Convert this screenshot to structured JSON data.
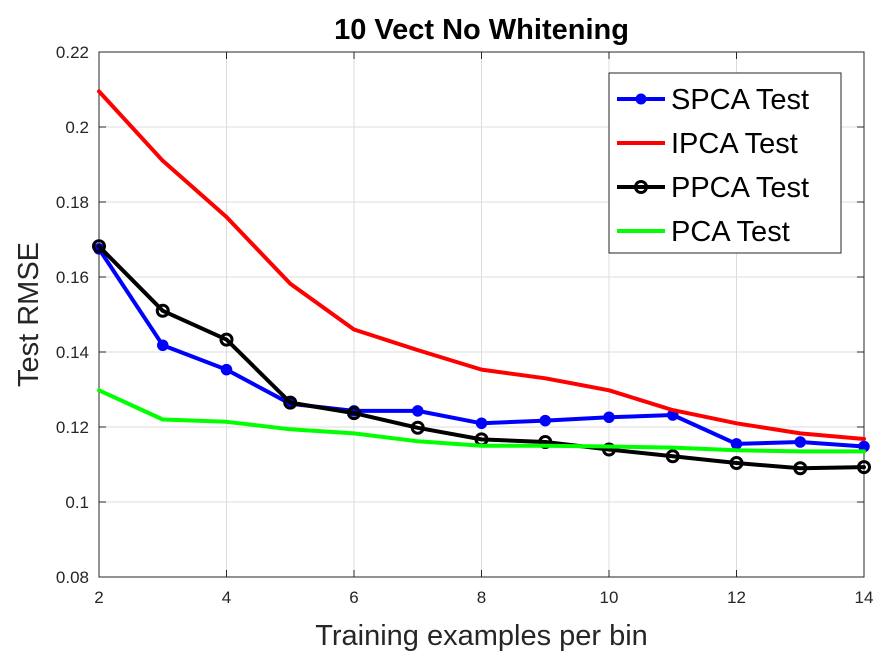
{
  "chart_data": {
    "type": "line",
    "title": "10 Vect No Whitening",
    "xlabel": "Training examples per bin",
    "ylabel": "Test RMSE",
    "xlim": [
      2,
      14
    ],
    "ylim": [
      0.08,
      0.22
    ],
    "xticks": [
      2,
      4,
      6,
      8,
      10,
      12,
      14
    ],
    "xtick_labels": [
      "2",
      "4",
      "6",
      "8",
      "10",
      "12",
      "14"
    ],
    "yticks": [
      0.08,
      0.1,
      0.12,
      0.14,
      0.16,
      0.18,
      0.2,
      0.22
    ],
    "ytick_labels": [
      "0.08",
      "0.1",
      "0.12",
      "0.14",
      "0.16",
      "0.18",
      "0.2",
      "0.22"
    ],
    "grid": true,
    "legend_position": "top-right",
    "x": [
      2,
      3,
      4,
      5,
      6,
      7,
      8,
      9,
      10,
      11,
      12,
      13,
      14
    ],
    "series": [
      {
        "name": "SPCA Test",
        "key": "spca",
        "color": "#0000ff",
        "marker": "filled-circle",
        "values": [
          0.1675,
          0.1418,
          0.1353,
          0.1262,
          0.1243,
          0.1243,
          0.121,
          0.1217,
          0.1226,
          0.1232,
          0.1155,
          0.116,
          0.1148
        ]
      },
      {
        "name": "IPCA Test",
        "key": "ipca",
        "color": "#ff0000",
        "marker": "none",
        "values": [
          0.2095,
          0.191,
          0.176,
          0.1582,
          0.146,
          0.1405,
          0.1353,
          0.133,
          0.1298,
          0.1245,
          0.121,
          0.1183,
          0.1168
        ]
      },
      {
        "name": "PPCA Test",
        "key": "ppca",
        "color": "#000000",
        "marker": "open-circle",
        "values": [
          0.1682,
          0.151,
          0.1433,
          0.1265,
          0.1237,
          0.1198,
          0.1167,
          0.116,
          0.114,
          0.1122,
          0.1104,
          0.109,
          0.1093
        ]
      },
      {
        "name": "PCA Test",
        "key": "pca",
        "color": "#00ff00",
        "marker": "none",
        "values": [
          0.1298,
          0.122,
          0.1214,
          0.1194,
          0.1183,
          0.1162,
          0.115,
          0.115,
          0.1148,
          0.1145,
          0.1138,
          0.1135,
          0.1135
        ]
      }
    ]
  }
}
